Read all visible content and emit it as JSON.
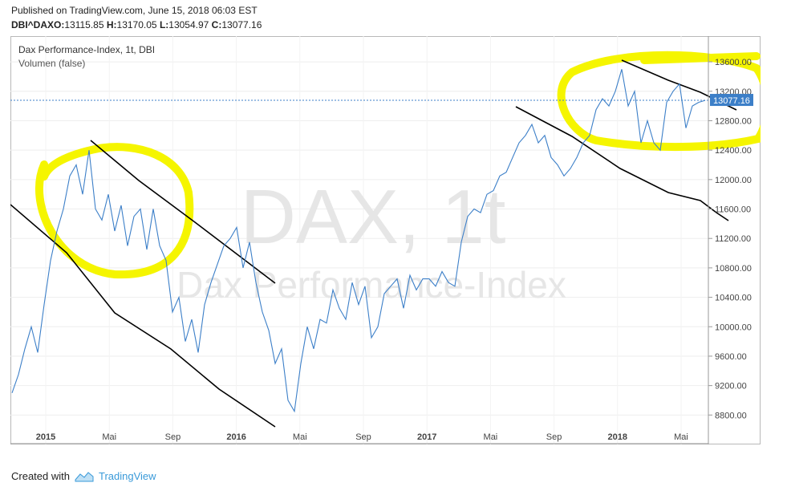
{
  "header": {
    "published": "Published on TradingView.com, June 15, 2018 06:03 EST",
    "symbol": "DBI^DAXO:",
    "open": "13115.85",
    "high": "13170.05",
    "low": "13054.97",
    "close": "13077.16"
  },
  "legend": {
    "title": "Dax Performance-Index, 1t, DBI",
    "volume": "Volumen (false)"
  },
  "watermark": {
    "symbol": "DAX, 1t",
    "name": "Dax Performance-Index"
  },
  "price_badge": "13077.16",
  "footer": {
    "created_with": "Created with",
    "brand": "TradingView"
  },
  "colors": {
    "line": "#3c7fc8",
    "highlight": "#f5f500",
    "badge": "#3c7fc8",
    "trend": "#000000"
  },
  "chart_data": {
    "type": "line",
    "title": "Dax Performance-Index, 1t, DBI",
    "x_ticks": [
      "2015",
      "Mai",
      "Sep",
      "2016",
      "Mai",
      "Sep",
      "2017",
      "Mai",
      "Sep",
      "2018",
      "Mai"
    ],
    "y_ticks": [
      "13600.00",
      "13200.00",
      "12800.00",
      "12400.00",
      "12000.00",
      "11600.00",
      "11200.00",
      "10800.00",
      "10400.00",
      "10000.00",
      "9600.00",
      "9200.00",
      "8800.00"
    ],
    "ylim": [
      8400,
      13950
    ],
    "xlim": [
      0,
      43.3
    ],
    "last_close": 13077.16,
    "grid": true,
    "series": [
      {
        "x": [
          0,
          0.4,
          0.8,
          1.2,
          1.6,
          2.0,
          2.4,
          2.8,
          3.2,
          3.6,
          4.0,
          4.4,
          4.8,
          5.2,
          5.6,
          6.0,
          6.4,
          6.8,
          7.2,
          7.6,
          8.0,
          8.4,
          8.8,
          9.2,
          9.6,
          10.0,
          10.4,
          10.8,
          11.2,
          11.6,
          12.0,
          12.4,
          12.8,
          13.2,
          13.6,
          14.0,
          14.4,
          14.8,
          15.2,
          15.6,
          16.0,
          16.4,
          16.8,
          17.2,
          17.6,
          18.0,
          18.4,
          18.8,
          19.2,
          19.6,
          20.0,
          20.4,
          20.8,
          21.2,
          21.6,
          22.0,
          22.4,
          22.8,
          23.2,
          23.6,
          24.0,
          24.4,
          24.8,
          25.2,
          25.6,
          26.0,
          26.4,
          26.8,
          27.2,
          27.6,
          28.0,
          28.4,
          28.8,
          29.2,
          29.6,
          30.0,
          30.4,
          30.8,
          31.2,
          31.6,
          32.0,
          32.4,
          32.8,
          33.2,
          33.6,
          34.0,
          34.4,
          34.8,
          35.2,
          35.6,
          36.0,
          36.4,
          36.8,
          37.2,
          37.6,
          38.0,
          38.4,
          38.8,
          39.2,
          39.6,
          40.0,
          40.4,
          40.8,
          41.2,
          41.6,
          42.0,
          42.4,
          42.8,
          43.2
        ],
        "y": [
          9100,
          9350,
          9700,
          10000,
          9650,
          10300,
          10900,
          11300,
          11600,
          12050,
          12200,
          11800,
          12400,
          11600,
          11450,
          11800,
          11300,
          11650,
          11100,
          11500,
          11600,
          11050,
          11600,
          11100,
          10900,
          10200,
          10400,
          9800,
          10100,
          9650,
          10300,
          10600,
          10850,
          11100,
          11200,
          11350,
          10800,
          11150,
          10600,
          10200,
          9950,
          9500,
          9700,
          9000,
          8850,
          9500,
          10000,
          9700,
          10100,
          10050,
          10500,
          10250,
          10100,
          10600,
          10300,
          10550,
          9850,
          10000,
          10450,
          10550,
          10650,
          10250,
          10700,
          10500,
          10650,
          10650,
          10550,
          10750,
          10600,
          10550,
          11150,
          11500,
          11600,
          11550,
          11800,
          11850,
          12050,
          12100,
          12300,
          12500,
          12600,
          12750,
          12500,
          12600,
          12300,
          12200,
          12050,
          12150,
          12300,
          12500,
          12600,
          12950,
          13100,
          13000,
          13200,
          13500,
          13000,
          13200,
          12500,
          12800,
          12500,
          12400,
          13050,
          13200,
          13300,
          12700,
          13000,
          13050,
          13077
        ]
      }
    ],
    "annotations": "hand-drawn black trend lines and yellow highlight circles"
  }
}
